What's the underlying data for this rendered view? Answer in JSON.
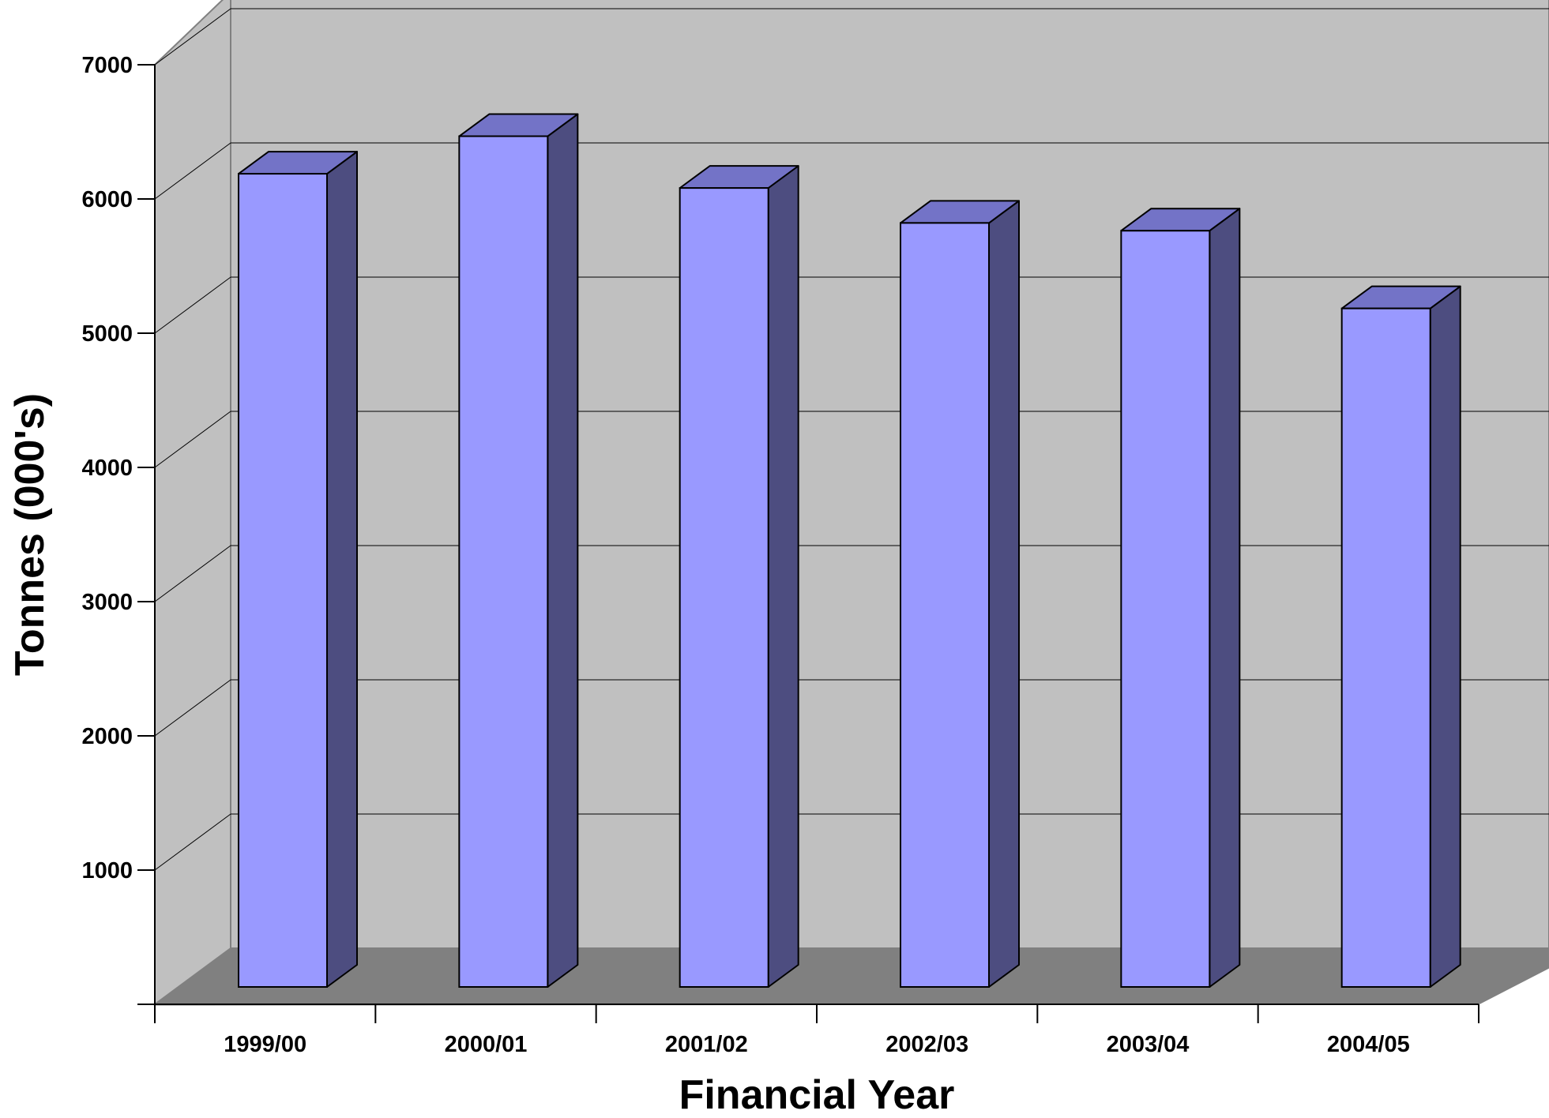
{
  "chart_data": {
    "type": "bar",
    "title": "",
    "xlabel": "Financial Year",
    "ylabel": "Tonnes (000's)",
    "categories": [
      "1999/00",
      "2000/01",
      "2001/02",
      "2002/03",
      "2003/04",
      "2004/05"
    ],
    "values": [
      6280,
      6570,
      6170,
      5900,
      5840,
      5240
    ],
    "ylim": [
      0,
      7000
    ],
    "yticks": [
      "1000",
      "2000",
      "3000",
      "4000",
      "5000",
      "6000",
      "7000"
    ],
    "grid": true,
    "legend": "none",
    "colors": {
      "bar_front": "#9999ff",
      "bar_side": "#4d4d80",
      "bar_top": "#7373c7",
      "back_wall": "#c0c0c0",
      "side_wall": "#c0c0c0",
      "floor": "#808080",
      "gridline": "#000000"
    }
  }
}
